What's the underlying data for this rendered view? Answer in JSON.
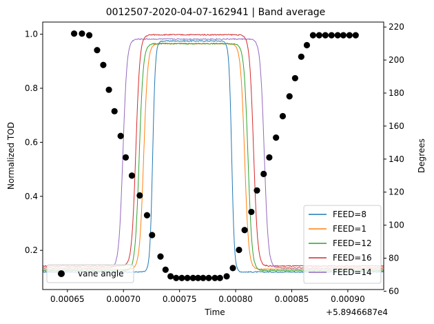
{
  "chart_data": {
    "type": "line",
    "title": "0012507-2020-04-07-162941 | Band average",
    "xlabel": "Time",
    "ylabel_left": "Normalized TOD",
    "ylabel_right": "Degrees",
    "x_offset_label": "+5.8946687e4",
    "xlim": [
      0.000628,
      0.000932
    ],
    "ylim_left": [
      0.055,
      1.045
    ],
    "ylim_right": [
      61,
      223
    ],
    "x_ticks": [
      0.00065,
      0.0007,
      0.00075,
      0.0008,
      0.00085,
      0.0009
    ],
    "x_tick_labels": [
      "0.00065",
      "0.00070",
      "0.00075",
      "0.00080",
      "0.00085",
      "0.00090"
    ],
    "y_left_ticks": [
      0.2,
      0.4,
      0.6,
      0.8,
      1.0
    ],
    "y_left_tick_labels": [
      "0.2",
      "0.4",
      "0.6",
      "0.8",
      "1.0"
    ],
    "y_right_ticks": [
      60,
      80,
      100,
      120,
      140,
      160,
      180,
      200,
      220
    ],
    "y_right_tick_labels": [
      "60",
      "80",
      "100",
      "120",
      "140",
      "160",
      "180",
      "200",
      "220"
    ],
    "legend_right": {
      "position": "lower right",
      "entries": [
        "FEED=8",
        "FEED=1",
        "FEED=12",
        "FEED=16",
        "FEED=14"
      ]
    },
    "legend_left": {
      "position": "lower left",
      "entries": [
        "vane angle"
      ]
    },
    "series": [
      {
        "name": "FEED=8",
        "color": "#1f77b4",
        "base": 0.12,
        "top": 0.975,
        "rise": 0.000726,
        "fall": 0.0007965,
        "width": 1.2e-06
      },
      {
        "name": "FEED=1",
        "color": "#ff7f0e",
        "base": 0.13,
        "top": 0.965,
        "rise": 0.000718,
        "fall": 0.000808,
        "width": 1.8e-06
      },
      {
        "name": "FEED=12",
        "color": "#2ca02c",
        "base": 0.125,
        "top": 0.965,
        "rise": 0.000714,
        "fall": 0.000811,
        "width": 1.8e-06
      },
      {
        "name": "FEED=16",
        "color": "#d62728",
        "base": 0.142,
        "top": 0.998,
        "rise": 0.000711,
        "fall": 0.000816,
        "width": 1.8e-06
      },
      {
        "name": "FEED=14",
        "color": "#9467bd",
        "base": 0.135,
        "top": 0.982,
        "rise": 0.0006995,
        "fall": 0.0008255,
        "width": 1.8e-06
      }
    ],
    "vane_angle": {
      "name": "vane angle",
      "color": "#000000",
      "x": [
        0.000656,
        0.000663,
        0.0006695,
        0.0006765,
        0.000682,
        0.000687,
        0.000692,
        0.0006975,
        0.000702,
        0.0007075,
        0.0007145,
        0.000721,
        0.0007255,
        0.000733,
        0.0007375,
        0.000742,
        0.000747,
        0.000752,
        0.000757,
        0.000762,
        0.0007665,
        0.000771,
        0.000776,
        0.0007815,
        0.000786,
        0.000792,
        0.0007975,
        0.000803,
        0.000808,
        0.000814,
        0.000819,
        0.000825,
        0.00083,
        0.000836,
        0.000842,
        0.000848,
        0.000853,
        0.0008585,
        0.0008635,
        0.000869,
        0.0008745,
        0.00088,
        0.0008855,
        0.000891,
        0.000896,
        0.0009015,
        0.000907
      ],
      "y": [
        216,
        216,
        215,
        206,
        197,
        182,
        169,
        154,
        141,
        130,
        118,
        106,
        94,
        81,
        73,
        69,
        68,
        68,
        68,
        68,
        68,
        68,
        68,
        68,
        68,
        69,
        74,
        85,
        97,
        108,
        121,
        131,
        141,
        153,
        166,
        178,
        189,
        202,
        209,
        215,
        215,
        215,
        215,
        215,
        215,
        215,
        215
      ]
    }
  }
}
